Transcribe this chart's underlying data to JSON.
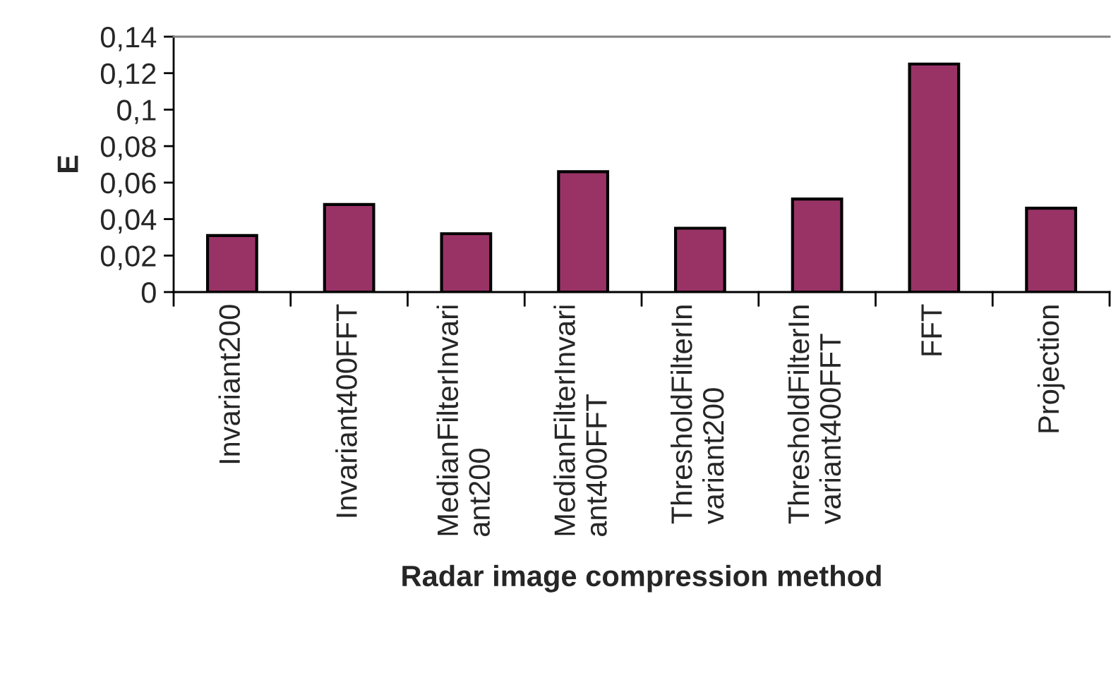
{
  "chart_data": {
    "type": "bar",
    "xlabel": "Radar image compression method",
    "ylabel": "E",
    "categories": [
      "Invariant200",
      "Invariant400FFT",
      "MedianFilterInvari\nant200",
      "MedianFilterInvari\nant400FFT",
      "ThresholdFilterIn\nvariant200",
      "ThresholdFilterIn\nvariant400FFT",
      "FFT",
      "Projection"
    ],
    "values": [
      0.031,
      0.048,
      0.032,
      0.066,
      0.035,
      0.051,
      0.125,
      0.046
    ],
    "color": "#993366",
    "ylim": [
      0,
      0.14
    ],
    "yticks": [
      0,
      {
        "value": 0.02,
        "label": "0,02"
      },
      {
        "value": 0.04,
        "label": "0,04"
      },
      {
        "value": 0.06,
        "label": "0,06"
      },
      {
        "value": 0.08,
        "label": "0,08"
      },
      {
        "value": 0.1,
        "label": "0,1"
      },
      {
        "value": 0.12,
        "label": "0,12"
      },
      {
        "value": 0.14,
        "label": "0,14"
      }
    ],
    "grid": false,
    "legend": false
  }
}
